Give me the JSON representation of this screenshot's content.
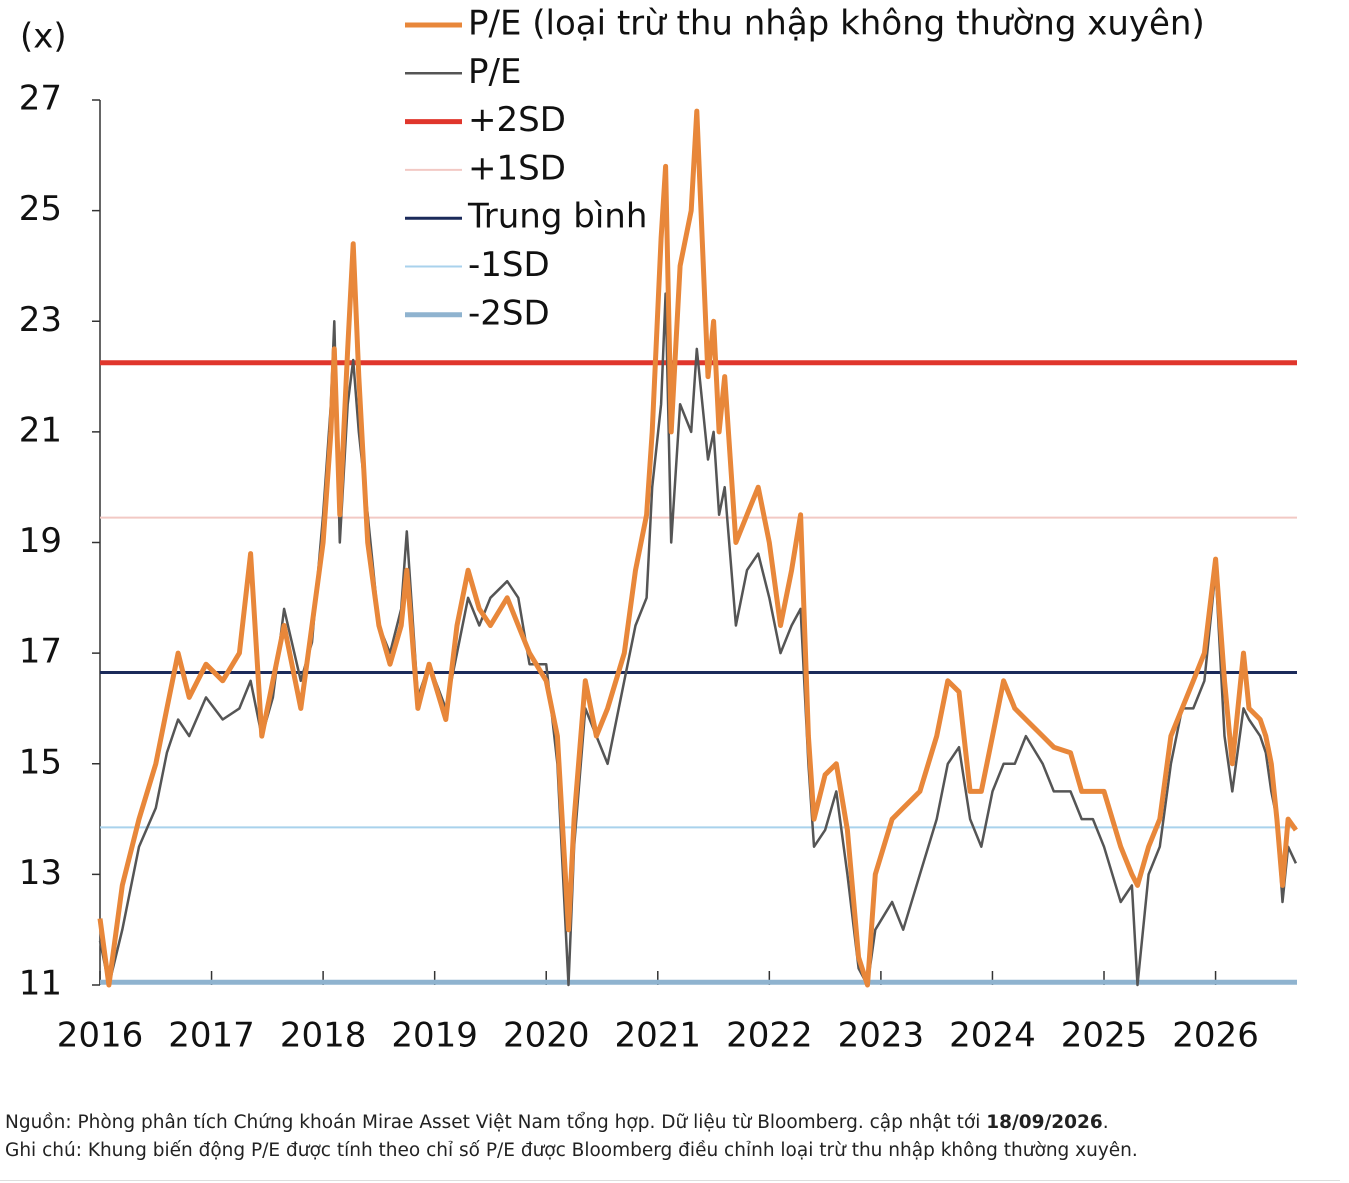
{
  "chart_data": {
    "type": "line",
    "y_label": "(x)",
    "xlim": [
      2016,
      2026.73
    ],
    "xticks": [
      2016,
      2017,
      2018,
      2019,
      2020,
      2021,
      2022,
      2023,
      2024,
      2025,
      2026
    ],
    "ylim": [
      11,
      27
    ],
    "yticks": [
      11,
      13,
      15,
      17,
      19,
      21,
      23,
      25,
      27
    ],
    "x": [
      2016.0,
      2016.08,
      2016.2,
      2016.35,
      2016.5,
      2016.6,
      2016.7,
      2016.8,
      2016.95,
      2017.1,
      2017.25,
      2017.35,
      2017.45,
      2017.55,
      2017.65,
      2017.8,
      2017.9,
      2018.0,
      2018.07,
      2018.1,
      2018.15,
      2018.22,
      2018.27,
      2018.32,
      2018.4,
      2018.5,
      2018.6,
      2018.7,
      2018.75,
      2018.85,
      2018.95,
      2019.1,
      2019.2,
      2019.3,
      2019.4,
      2019.5,
      2019.65,
      2019.75,
      2019.85,
      2020.0,
      2020.1,
      2020.2,
      2020.25,
      2020.35,
      2020.45,
      2020.55,
      2020.7,
      2020.8,
      2020.9,
      2020.95,
      2021.03,
      2021.07,
      2021.12,
      2021.2,
      2021.3,
      2021.35,
      2021.45,
      2021.5,
      2021.55,
      2021.6,
      2021.7,
      2021.8,
      2021.9,
      2022.0,
      2022.1,
      2022.2,
      2022.28,
      2022.35,
      2022.4,
      2022.5,
      2022.6,
      2022.7,
      2022.8,
      2022.88,
      2022.95,
      2023.1,
      2023.2,
      2023.35,
      2023.5,
      2023.6,
      2023.7,
      2023.8,
      2023.9,
      2024.0,
      2024.1,
      2024.2,
      2024.3,
      2024.45,
      2024.55,
      2024.7,
      2024.8,
      2024.9,
      2025.0,
      2025.15,
      2025.25,
      2025.3,
      2025.4,
      2025.5,
      2025.6,
      2025.7,
      2025.8,
      2025.9,
      2026.0,
      2026.08,
      2026.15,
      2026.25,
      2026.3,
      2026.4,
      2026.45,
      2026.5,
      2026.55,
      2026.6,
      2026.65,
      2026.72
    ],
    "series": [
      {
        "name": "P/E (loại trừ thu nhập không thường xuyên)",
        "color": "#e8873a",
        "values": [
          12.2,
          11.0,
          12.8,
          14.0,
          15.0,
          16.0,
          17.0,
          16.2,
          16.8,
          16.5,
          17.0,
          18.8,
          15.5,
          16.5,
          17.5,
          16.0,
          17.5,
          19.0,
          21.0,
          22.5,
          19.5,
          22.5,
          24.4,
          22.0,
          19.0,
          17.5,
          16.8,
          17.5,
          18.5,
          16.0,
          16.8,
          15.8,
          17.5,
          18.5,
          17.8,
          17.5,
          18.0,
          17.5,
          17.0,
          16.5,
          15.5,
          12.0,
          14.0,
          16.5,
          15.5,
          16.0,
          17.0,
          18.5,
          19.5,
          21.0,
          24.5,
          25.8,
          21.0,
          24.0,
          25.0,
          26.8,
          22.0,
          23.0,
          21.0,
          22.0,
          19.0,
          19.5,
          20.0,
          19.0,
          17.5,
          18.5,
          19.5,
          15.5,
          14.0,
          14.8,
          15.0,
          13.8,
          11.5,
          11.0,
          13.0,
          14.0,
          14.2,
          14.5,
          15.5,
          16.5,
          16.3,
          14.5,
          14.5,
          15.5,
          16.5,
          16.0,
          15.8,
          15.5,
          15.3,
          15.2,
          14.5,
          14.5,
          14.5,
          13.5,
          13.0,
          12.8,
          13.5,
          14.0,
          15.5,
          16.0,
          16.5,
          17.0,
          18.7,
          16.5,
          15.0,
          17.0,
          16.0,
          15.8,
          15.5,
          15.0,
          14.0,
          12.8,
          14.0,
          13.8
        ]
      },
      {
        "name": "P/E",
        "color": "#555555",
        "values": [
          11.8,
          11.0,
          12.0,
          13.5,
          14.2,
          15.2,
          15.8,
          15.5,
          16.2,
          15.8,
          16.0,
          16.5,
          15.5,
          16.2,
          17.8,
          16.5,
          17.2,
          19.5,
          21.5,
          23.0,
          19.0,
          21.5,
          22.3,
          21.0,
          19.5,
          17.5,
          17.0,
          17.8,
          19.2,
          16.2,
          16.8,
          16.0,
          17.0,
          18.0,
          17.5,
          18.0,
          18.3,
          18.0,
          16.8,
          16.8,
          15.0,
          11.0,
          13.5,
          16.0,
          15.5,
          15.0,
          16.5,
          17.5,
          18.0,
          20.0,
          21.5,
          23.5,
          19.0,
          21.5,
          21.0,
          22.5,
          20.5,
          21.0,
          19.5,
          20.0,
          17.5,
          18.5,
          18.8,
          18.0,
          17.0,
          17.5,
          17.8,
          15.0,
          13.5,
          13.8,
          14.5,
          13.0,
          11.3,
          11.0,
          12.0,
          12.5,
          12.0,
          13.0,
          14.0,
          15.0,
          15.3,
          14.0,
          13.5,
          14.5,
          15.0,
          15.0,
          15.5,
          15.0,
          14.5,
          14.5,
          14.0,
          14.0,
          13.5,
          12.5,
          12.8,
          11.0,
          13.0,
          13.5,
          15.0,
          16.0,
          16.0,
          16.5,
          18.5,
          15.5,
          14.5,
          16.0,
          15.8,
          15.5,
          15.2,
          14.5,
          14.0,
          12.5,
          13.5,
          13.2
        ]
      }
    ],
    "reference_lines": [
      {
        "name": "+2SD",
        "color": "#e0362c",
        "value": 22.25
      },
      {
        "name": "+1SD",
        "color": "#f2c9c4",
        "value": 19.45
      },
      {
        "name": "Trung bình",
        "color": "#1b2a5a",
        "value": 16.65
      },
      {
        "name": "-1SD",
        "color": "#a9d2ec",
        "value": 13.85
      },
      {
        "name": "-2SD",
        "color": "#8fb3cf",
        "value": 11.05
      }
    ]
  },
  "footer": {
    "source": "Nguồn: Phòng phân tích Chứng khoán Mirae Asset Việt Nam tổng hợp. Dữ liệu từ Bloomberg. cập nhật tới ",
    "source_date": "18/09/2026",
    "source_end": ".",
    "note": "Ghi chú: Khung biến động P/E được tính theo chỉ số P/E được Bloomberg điều chỉnh loại trừ thu nhập không thường xuyên."
  }
}
